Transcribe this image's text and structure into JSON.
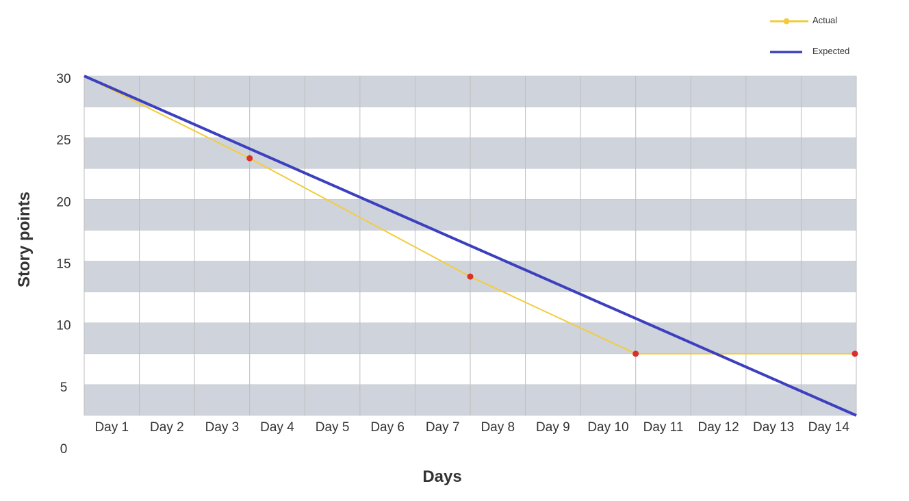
{
  "chart_data": {
    "type": "line",
    "title": "",
    "xlabel": "Days",
    "ylabel": "Story points",
    "categories": [
      "Day 1",
      "Day 2",
      "Day 3",
      "Day 4",
      "Day 5",
      "Day 6",
      "Day 7",
      "Day 8",
      "Day 9",
      "Day 10",
      "Day 11",
      "Day 12",
      "Day 13",
      "Day 14"
    ],
    "y_ticks": [
      "30",
      "25",
      "20",
      "15",
      "10",
      "5",
      "0"
    ],
    "ylim": [
      -3,
      30
    ],
    "xlim": [
      0,
      14
    ],
    "grid": true,
    "legend_position": "top-right",
    "series": [
      {
        "name": "Actual",
        "color": "#F2CC3D",
        "marker_color": "#D9302B",
        "points": [
          [
            0,
            30
          ],
          [
            3,
            22
          ],
          [
            7,
            10.5
          ],
          [
            10,
            3
          ],
          [
            14,
            3
          ]
        ]
      },
      {
        "name": "Expected",
        "color": "#3C40BE",
        "points": [
          [
            0,
            30
          ],
          [
            14,
            -3
          ]
        ]
      }
    ]
  }
}
